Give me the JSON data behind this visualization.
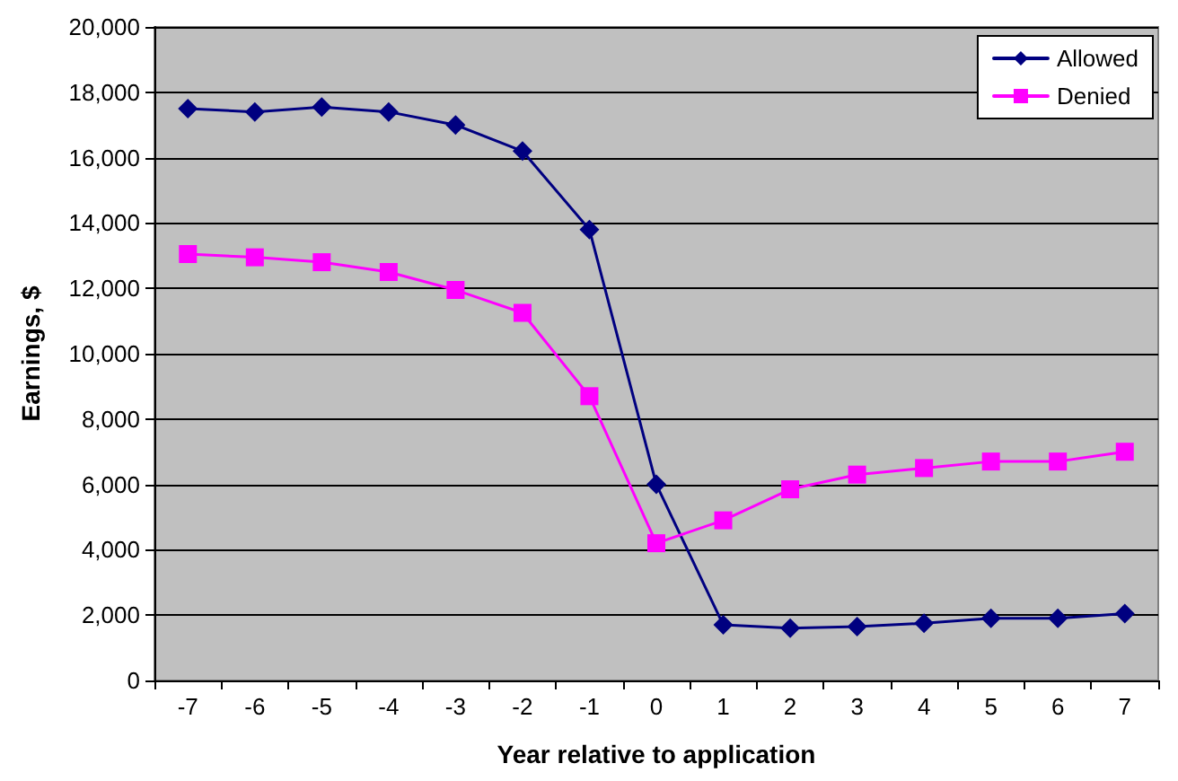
{
  "chart_data": {
    "type": "line",
    "xlabel": "Year relative to application",
    "ylabel": "Earnings, $",
    "categories": [
      "-7",
      "-6",
      "-5",
      "-4",
      "-3",
      "-2",
      "-1",
      "0",
      "1",
      "2",
      "3",
      "4",
      "5",
      "6",
      "7"
    ],
    "series": [
      {
        "name": "Allowed",
        "color": "#000080",
        "marker": "diamond",
        "values": [
          17500,
          17400,
          17550,
          17400,
          17000,
          16200,
          13800,
          6000,
          1700,
          1600,
          1650,
          1750,
          1900,
          1900,
          2050
        ]
      },
      {
        "name": "Denied",
        "color": "#ff00ff",
        "marker": "square",
        "values": [
          13050,
          12950,
          12800,
          12500,
          11950,
          11250,
          8700,
          4200,
          4900,
          5850,
          6300,
          6500,
          6700,
          6700,
          7000
        ]
      }
    ],
    "ylim": [
      0,
      20000
    ],
    "yticks": [
      {
        "value": 0,
        "label": "0"
      },
      {
        "value": 2000,
        "label": "2,000"
      },
      {
        "value": 4000,
        "label": "4,000"
      },
      {
        "value": 6000,
        "label": "6,000"
      },
      {
        "value": 8000,
        "label": "8,000"
      },
      {
        "value": 10000,
        "label": "10,000"
      },
      {
        "value": 12000,
        "label": "12,000"
      },
      {
        "value": 14000,
        "label": "14,000"
      },
      {
        "value": 16000,
        "label": "16,000"
      },
      {
        "value": 18000,
        "label": "18,000"
      },
      {
        "value": 20000,
        "label": "20,000"
      }
    ],
    "grid": "y",
    "legend": "top right",
    "line_style": "solid"
  }
}
